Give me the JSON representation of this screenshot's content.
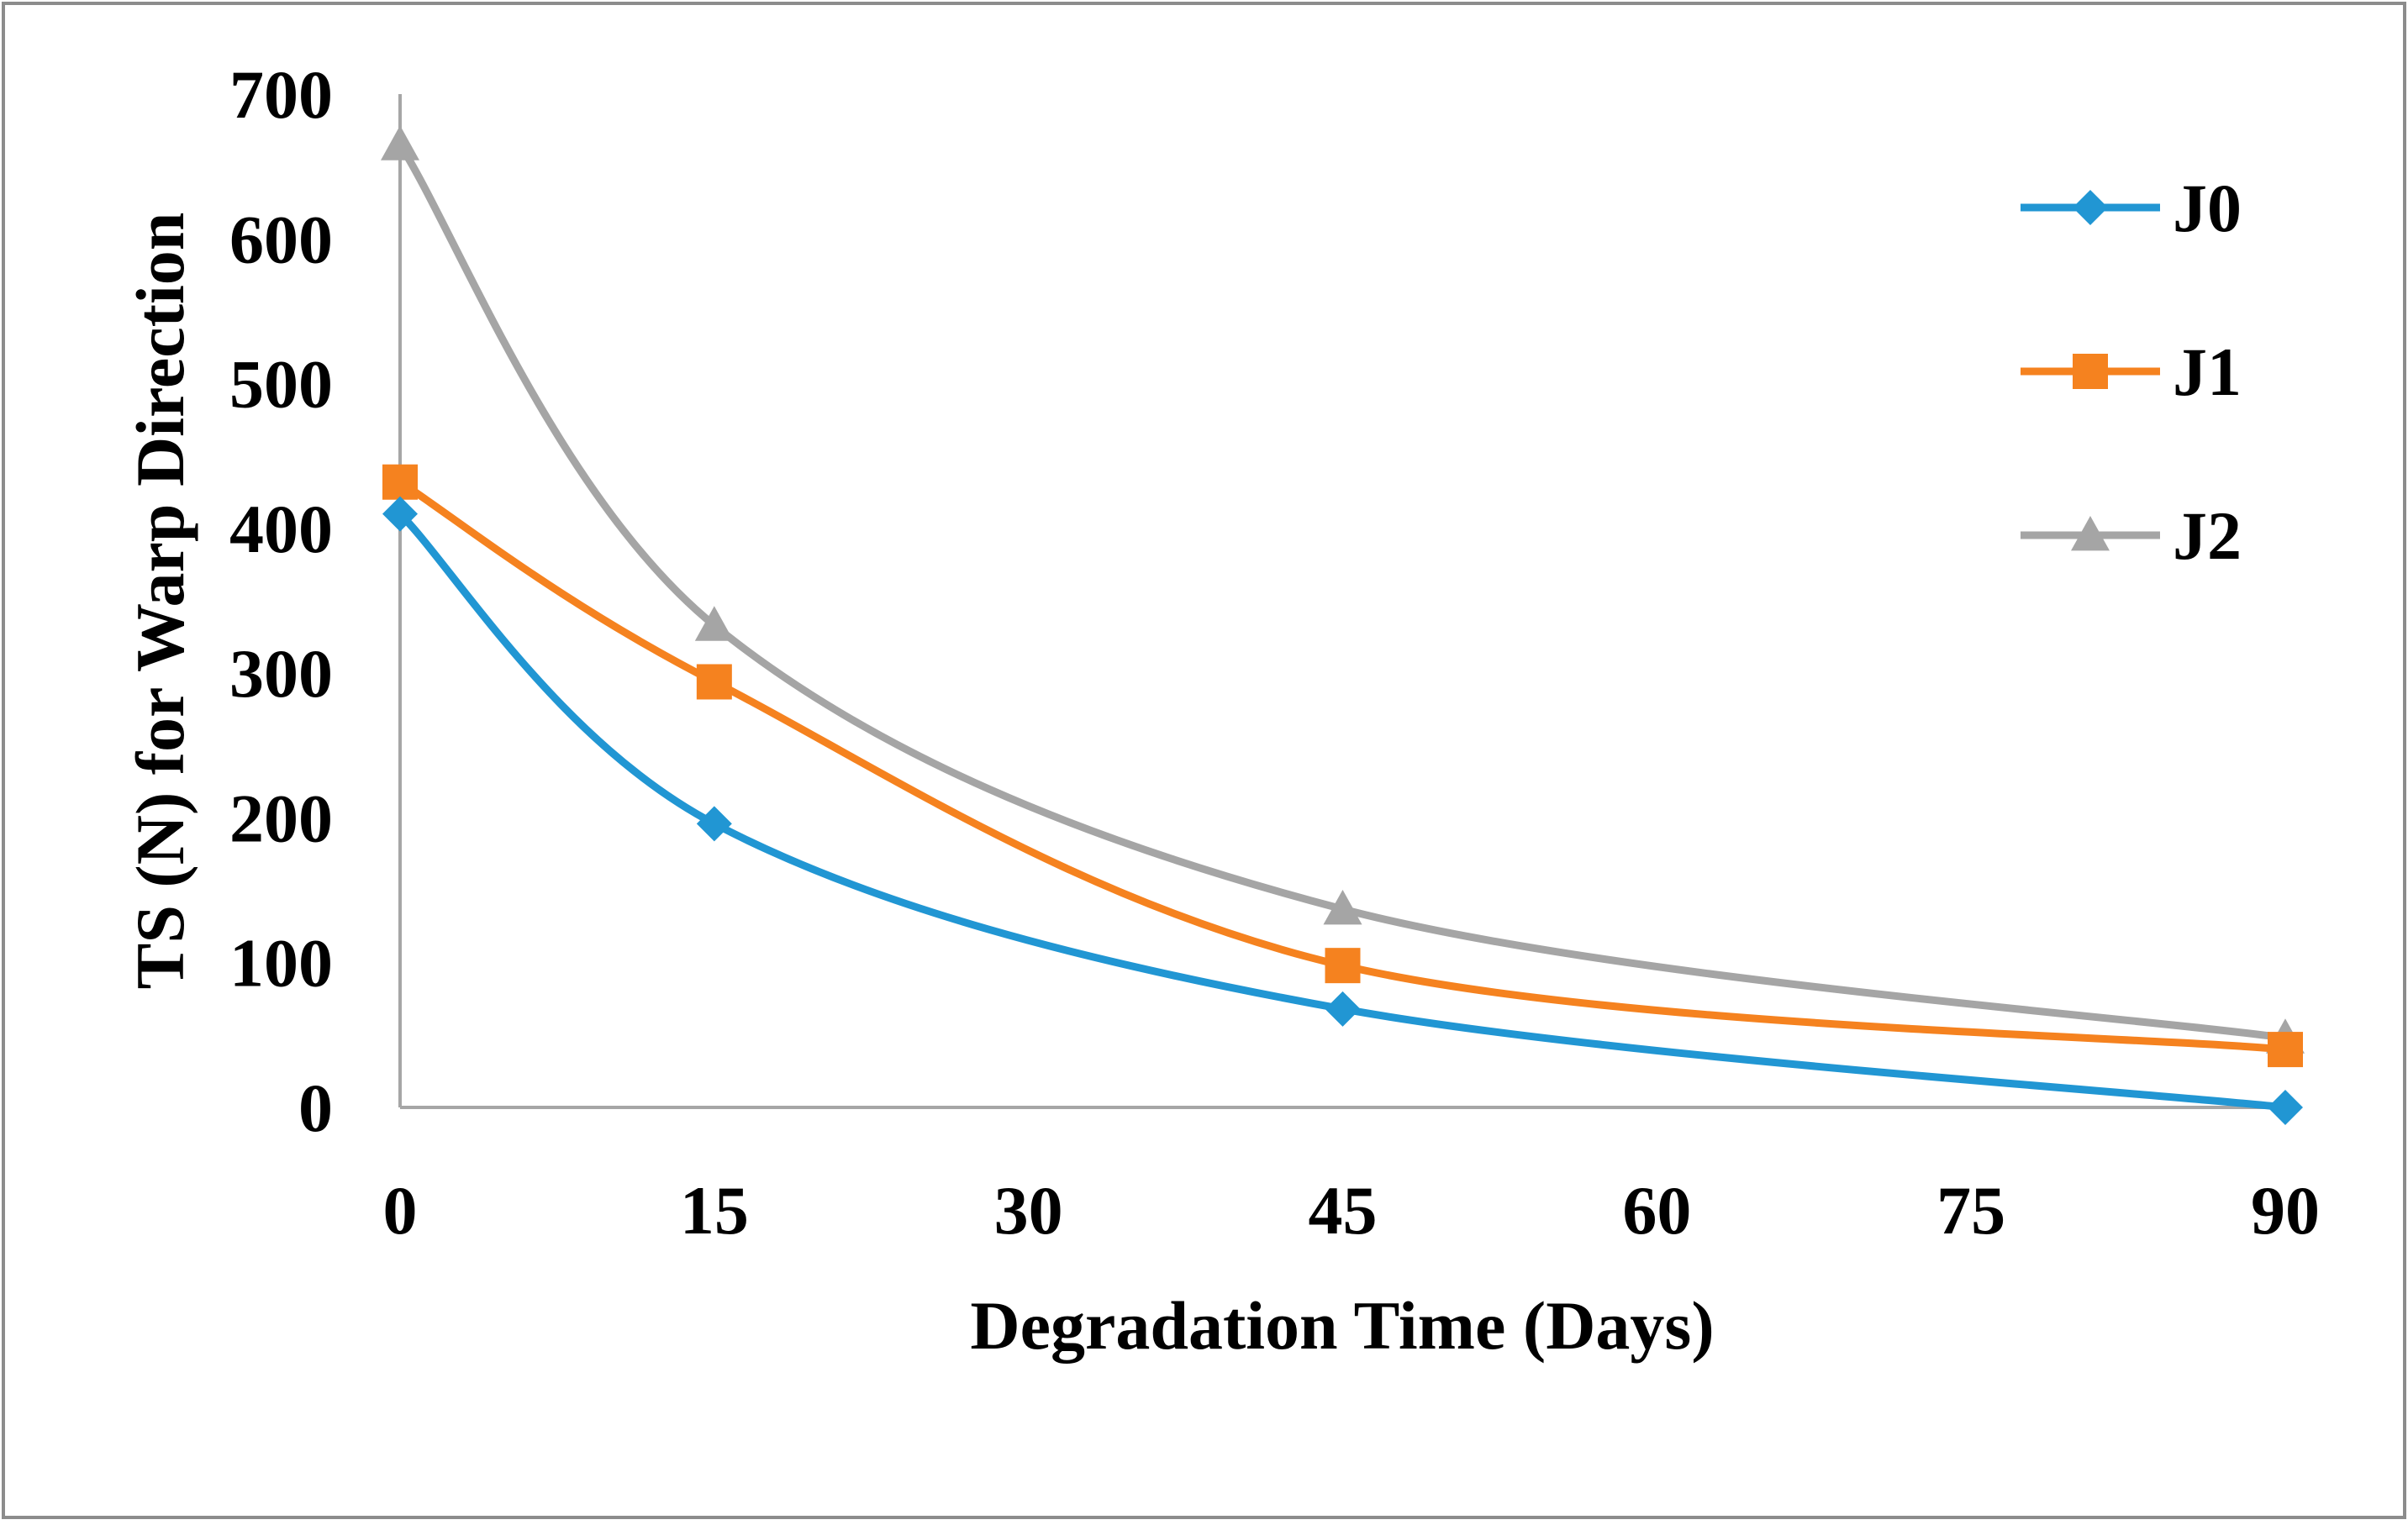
{
  "chart_data": {
    "type": "line",
    "title": "",
    "xlabel": "Degradation Time (Days)",
    "ylabel": "TS (N) for Warp Direction",
    "x": [
      0,
      15,
      45,
      90
    ],
    "xticks": [
      "0",
      "15",
      "30",
      "45",
      "60",
      "75",
      "90"
    ],
    "yticks": [
      "0",
      "100",
      "200",
      "300",
      "400",
      "500",
      "600",
      "700"
    ],
    "xlim": [
      0,
      90
    ],
    "ylim": [
      0,
      700
    ],
    "grid": false,
    "legend_position": "right",
    "smooth": true,
    "series": [
      {
        "name": "J0",
        "marker": "diamond",
        "color": "#2196D3",
        "values": [
          410,
          196,
          68,
          0
        ]
      },
      {
        "name": "J1",
        "marker": "square",
        "color": "#F5821F",
        "values": [
          432,
          294,
          98,
          40
        ]
      },
      {
        "name": "J2",
        "marker": "triangle",
        "color": "#A5A5A5",
        "values": [
          665,
          333,
          137,
          48
        ]
      }
    ]
  }
}
